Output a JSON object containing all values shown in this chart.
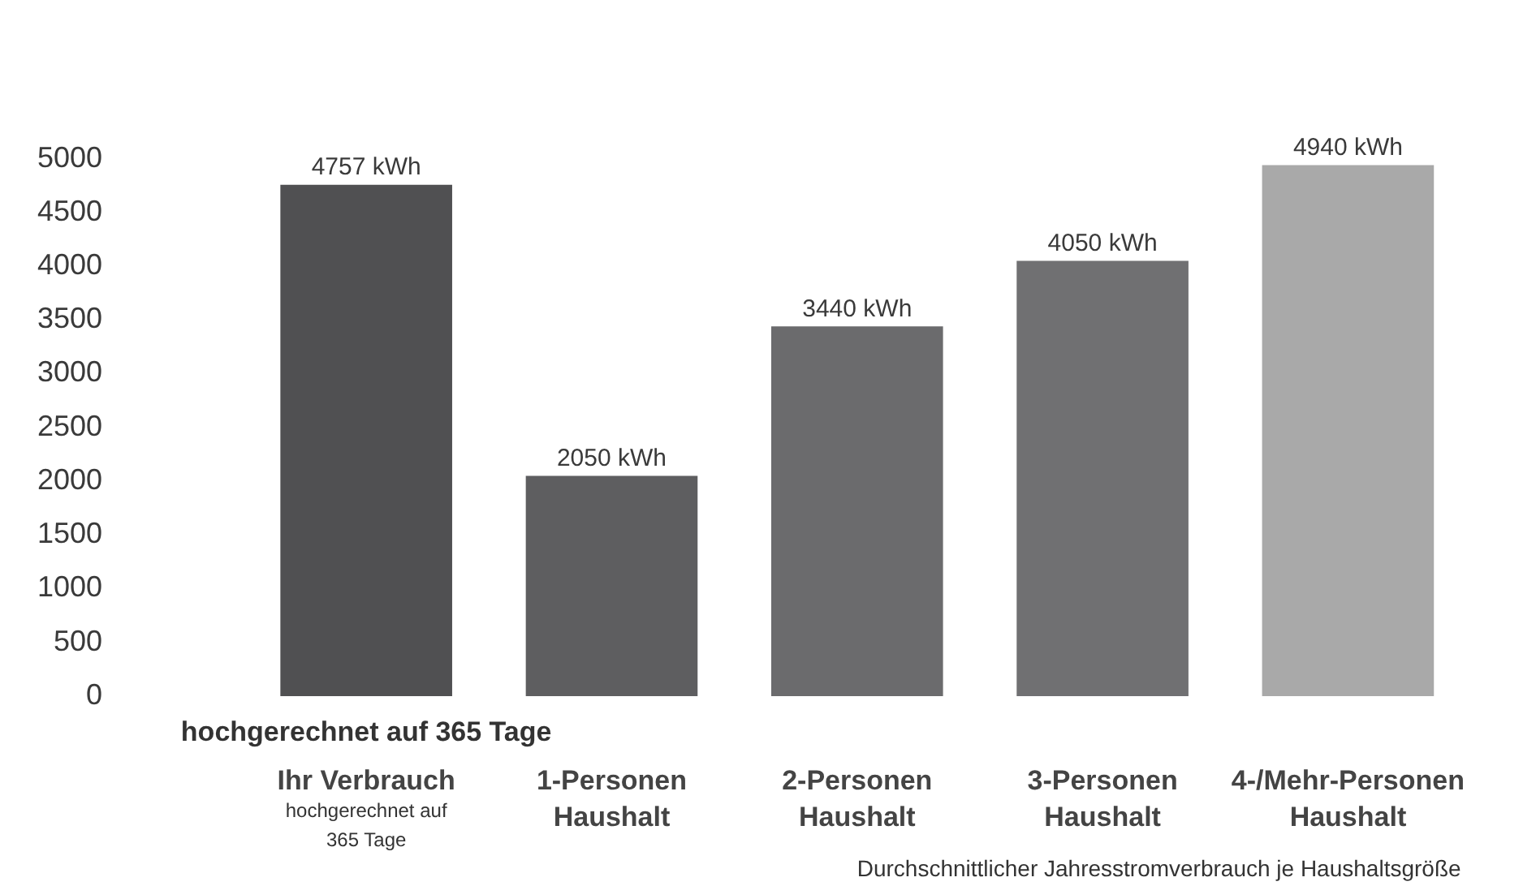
{
  "chart_data": {
    "type": "bar",
    "categories": [
      "Ihr Verbrauch",
      "1-Personen Haushalt",
      "2-Personen Haushalt",
      "3-Personen Haushalt",
      "4-/Mehr-Personen Haushalt"
    ],
    "values": [
      4757,
      2050,
      3440,
      4050,
      4940
    ],
    "colors": [
      "#505052",
      "#5e5e60",
      "#6b6b6d",
      "#707072",
      "#a9a9a9"
    ],
    "value_labels": [
      "4757 kWh",
      "2050 kWh",
      "3440 kWh",
      "4050 kWh",
      "4940 kWh"
    ],
    "ylim": [
      0,
      5000
    ],
    "yticks": [
      0,
      500,
      1000,
      1500,
      2000,
      2500,
      3000,
      3500,
      4000,
      4500,
      5000
    ],
    "annotations": [
      "hochgerechnet auf 365 Tage",
      "hochgerechnet auf 365 Tage",
      "Durchschnittlicher Jahresstromverbrauch je Haushaltsgröße"
    ]
  }
}
